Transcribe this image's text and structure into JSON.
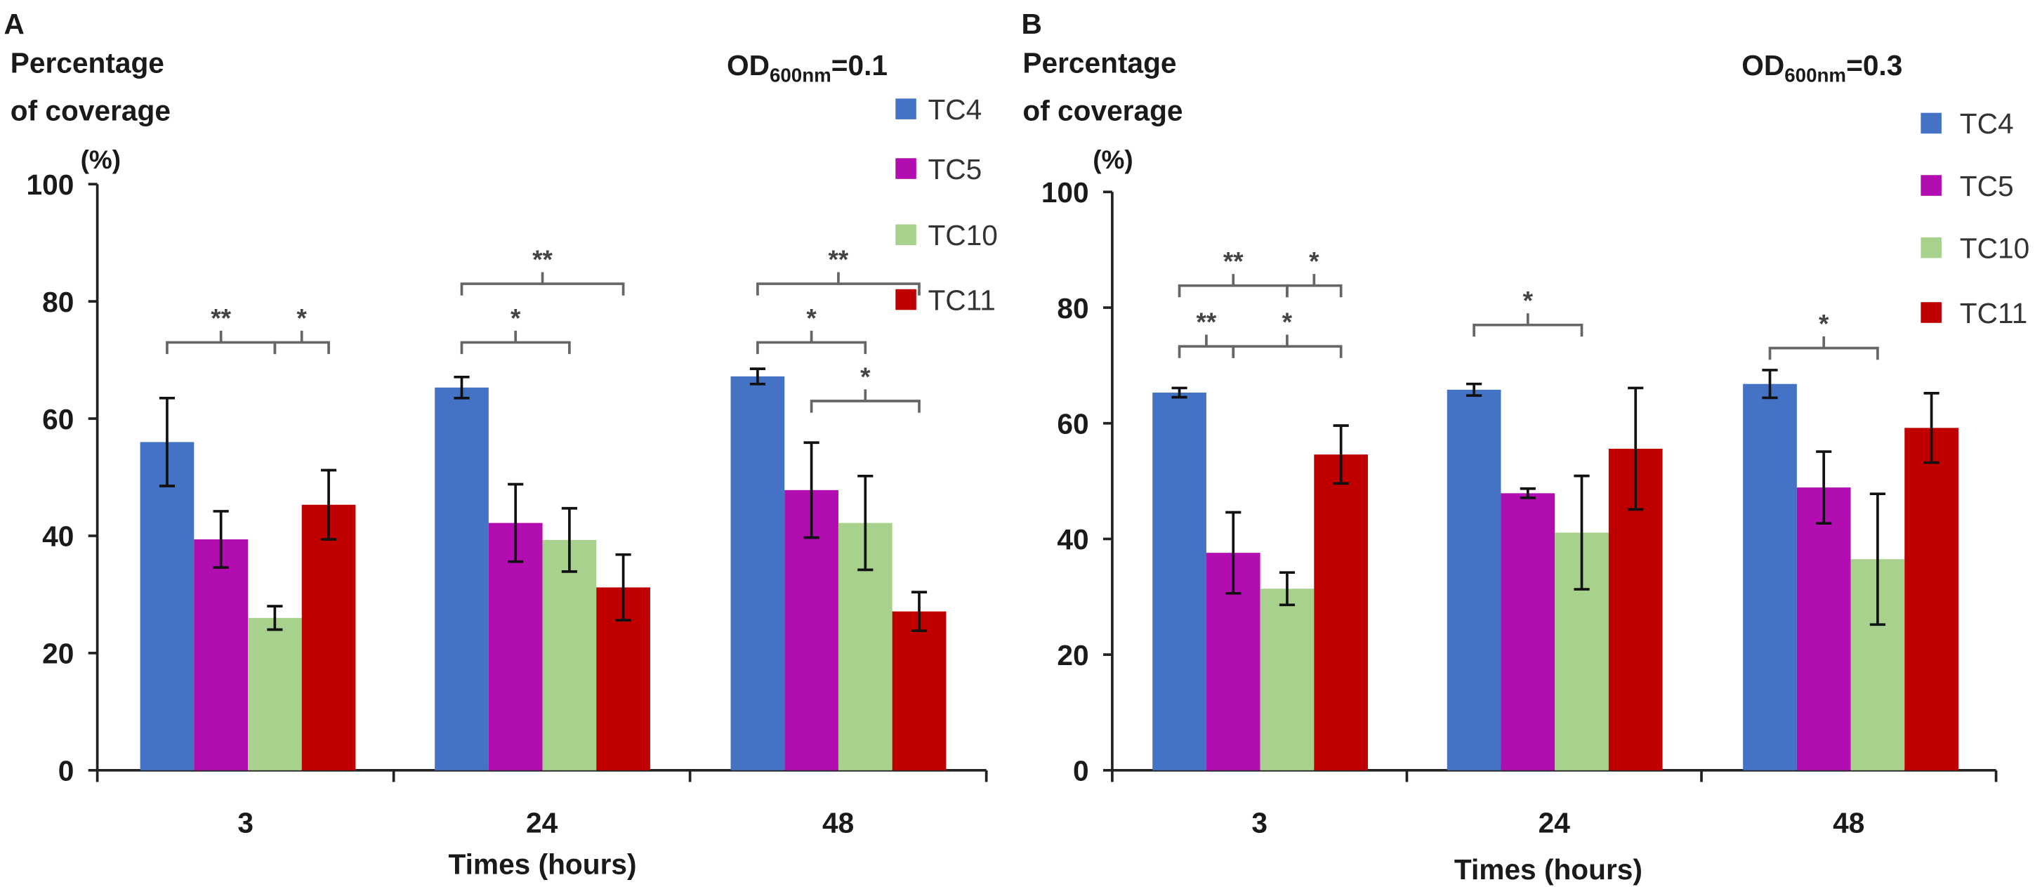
{
  "chart_data": [
    {
      "panel_label": "A",
      "type": "bar",
      "title": "OD600nm=0.1",
      "title_main": "OD",
      "title_sub": "600nm",
      "title_tail": "=0.1",
      "ylabel_lines": [
        "Percentage",
        "of coverage",
        "(%)"
      ],
      "xlabel": "Times (hours)",
      "categories": [
        "3",
        "24",
        "48"
      ],
      "ylim": [
        0,
        100
      ],
      "yticks": [
        "0",
        "20",
        "40",
        "60",
        "80",
        "100"
      ],
      "series": [
        {
          "name": "TC4",
          "color": "#4472C4",
          "values": [
            56,
            65.3,
            67.2
          ],
          "errors": [
            7.5,
            1.8,
            1.3
          ]
        },
        {
          "name": "TC5",
          "color": "#B10DB1",
          "values": [
            39.4,
            42.2,
            47.8
          ],
          "errors": [
            4.8,
            6.6,
            8.1
          ]
        },
        {
          "name": "TC10",
          "color": "#A9D18E",
          "values": [
            26,
            39.3,
            42.2
          ],
          "errors": [
            2,
            5.4,
            8
          ]
        },
        {
          "name": "TC11",
          "color": "#C00000",
          "values": [
            45.3,
            31.2,
            27.1
          ],
          "errors": [
            5.9,
            5.6,
            3.3
          ]
        }
      ],
      "significance": [
        {
          "label": "**",
          "group": "3",
          "from": "TC4",
          "to": "TC10",
          "level": 73
        },
        {
          "label": "*",
          "group": "3",
          "from": "TC10",
          "to": "TC11",
          "level": 73
        },
        {
          "label": "**",
          "group": "24",
          "from": "TC4",
          "to": "TC11",
          "level": 83
        },
        {
          "label": "*",
          "group": "24",
          "from": "TC4",
          "to": "TC10",
          "level": 73
        },
        {
          "label": "**",
          "group": "48",
          "from": "TC4",
          "to": "TC11",
          "level": 83
        },
        {
          "label": "*",
          "group": "48",
          "from": "TC4",
          "to": "TC10",
          "level": 73
        },
        {
          "label": "*",
          "group": "48",
          "from": "TC5",
          "to": "TC11",
          "level": 63
        }
      ]
    },
    {
      "panel_label": "B",
      "type": "bar",
      "title": "OD600nm=0.3",
      "title_main": "OD",
      "title_sub": "600nm",
      "title_tail": "=0.3",
      "ylabel_lines": [
        "Percentage",
        "of coverage",
        "(%)"
      ],
      "xlabel": "Times (hours)",
      "categories": [
        "3",
        "24",
        "48"
      ],
      "ylim": [
        0,
        100
      ],
      "yticks": [
        "0",
        "20",
        "40",
        "60",
        "80",
        "100"
      ],
      "series": [
        {
          "name": "TC4",
          "color": "#4472C4",
          "values": [
            65.3,
            65.8,
            66.8
          ],
          "errors": [
            0.8,
            1,
            2.4
          ]
        },
        {
          "name": "TC5",
          "color": "#B10DB1",
          "values": [
            37.6,
            47.9,
            48.9
          ],
          "errors": [
            7,
            0.8,
            6.2
          ]
        },
        {
          "name": "TC10",
          "color": "#A9D18E",
          "values": [
            31.4,
            41.1,
            36.5
          ],
          "errors": [
            2.8,
            9.8,
            11.3
          ]
        },
        {
          "name": "TC11",
          "color": "#C00000",
          "values": [
            54.6,
            55.6,
            59.2
          ],
          "errors": [
            5,
            10.5,
            6
          ]
        }
      ],
      "significance": [
        {
          "label": "**",
          "group": "3",
          "from": "TC4",
          "to": "TC10",
          "level": 83.8
        },
        {
          "label": "*",
          "group": "3",
          "from": "TC10",
          "to": "TC11",
          "level": 83.8
        },
        {
          "label": "**",
          "group": "3",
          "from": "TC4",
          "to": "TC5",
          "level": 73.3
        },
        {
          "label": "*",
          "group": "3",
          "from": "TC5",
          "to": "TC11",
          "level": 73.3
        },
        {
          "label": "*",
          "group": "24",
          "from": "TC4",
          "to": "TC10",
          "level": 77
        },
        {
          "label": "*",
          "group": "48",
          "from": "TC4",
          "to": "TC10",
          "level": 73
        }
      ]
    }
  ]
}
